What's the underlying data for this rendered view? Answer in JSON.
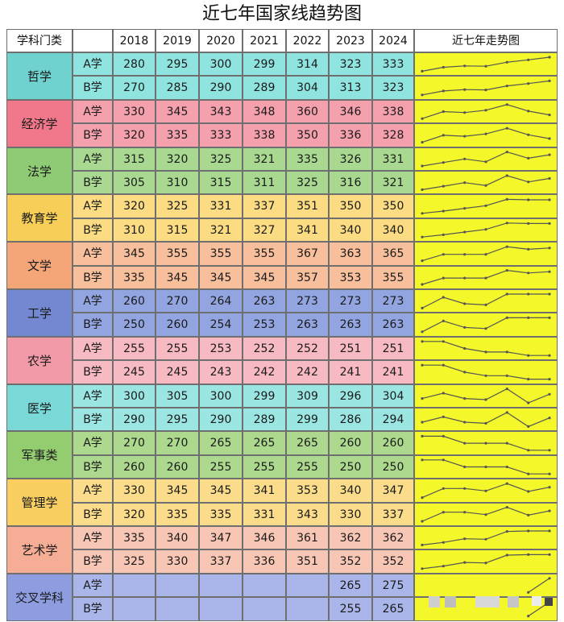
{
  "title": "近七年国家线趋势图",
  "header": {
    "subject": "学科门类",
    "years": [
      "2018",
      "2019",
      "2020",
      "2021",
      "2022",
      "2023",
      "2024"
    ],
    "trend": "近七年走势图"
  },
  "row_labels": [
    "A学",
    "B学"
  ],
  "colors": {
    "trend_bg": "#f4f72a",
    "border": "#6f6f6f",
    "groups": [
      {
        "label": "#6fd2cf",
        "data": "#8fe4e0"
      },
      {
        "label": "#f0788a",
        "data": "#f5a1ad"
      },
      {
        "label": "#8fcb74",
        "data": "#a9d991"
      },
      {
        "label": "#f7cf58",
        "data": "#fbdc82"
      },
      {
        "label": "#f4a678",
        "data": "#f7bf9c"
      },
      {
        "label": "#7388d1",
        "data": "#93a5e0"
      },
      {
        "label": "#f39aa8",
        "data": "#f7b9c2"
      },
      {
        "label": "#7ad9d6",
        "data": "#9be6e3"
      },
      {
        "label": "#93cd70",
        "data": "#add98e"
      },
      {
        "label": "#f9cf62",
        "data": "#fbdc8a"
      },
      {
        "label": "#f5ad95",
        "data": "#f8c6b4"
      },
      {
        "label": "#8e9de0",
        "data": "#aab6ea"
      }
    ]
  },
  "chart_data": {
    "type": "table",
    "title": "近七年国家线趋势图",
    "columns": [
      "2018",
      "2019",
      "2020",
      "2021",
      "2022",
      "2023",
      "2024"
    ],
    "groups": [
      {
        "subject": "哲学",
        "rows": [
          {
            "name": "A学",
            "values": [
              280,
              295,
              300,
              299,
              314,
              323,
              333
            ]
          },
          {
            "name": "B学",
            "values": [
              270,
              285,
              290,
              289,
              304,
              313,
              323
            ]
          }
        ]
      },
      {
        "subject": "经济学",
        "rows": [
          {
            "name": "A学",
            "values": [
              330,
              345,
              343,
              348,
              360,
              346,
              338
            ]
          },
          {
            "name": "B学",
            "values": [
              320,
              335,
              333,
              338,
              350,
              336,
              328
            ]
          }
        ]
      },
      {
        "subject": "法学",
        "rows": [
          {
            "name": "A学",
            "values": [
              315,
              320,
              325,
              321,
              335,
              326,
              331
            ]
          },
          {
            "name": "B学",
            "values": [
              305,
              310,
              315,
              311,
              325,
              316,
              321
            ]
          }
        ]
      },
      {
        "subject": "教育学",
        "rows": [
          {
            "name": "A学",
            "values": [
              320,
              325,
              331,
              337,
              351,
              350,
              350
            ]
          },
          {
            "name": "B学",
            "values": [
              310,
              315,
              321,
              327,
              341,
              340,
              340
            ]
          }
        ]
      },
      {
        "subject": "文学",
        "rows": [
          {
            "name": "A学",
            "values": [
              345,
              355,
              355,
              355,
              367,
              363,
              365
            ]
          },
          {
            "name": "B学",
            "values": [
              335,
              345,
              345,
              345,
              357,
              353,
              355
            ]
          }
        ]
      },
      {
        "subject": "工学",
        "rows": [
          {
            "name": "A学",
            "values": [
              260,
              270,
              264,
              263,
              273,
              273,
              273
            ]
          },
          {
            "name": "B学",
            "values": [
              250,
              260,
              254,
              253,
              263,
              263,
              263
            ]
          }
        ]
      },
      {
        "subject": "农学",
        "rows": [
          {
            "name": "A学",
            "values": [
              255,
              255,
              253,
              252,
              252,
              251,
              251
            ]
          },
          {
            "name": "B学",
            "values": [
              245,
              245,
              243,
              242,
              242,
              241,
              241
            ]
          }
        ]
      },
      {
        "subject": "医学",
        "rows": [
          {
            "name": "A学",
            "values": [
              300,
              305,
              300,
              299,
              309,
              296,
              304
            ]
          },
          {
            "name": "B学",
            "values": [
              290,
              295,
              290,
              289,
              299,
              286,
              294
            ]
          }
        ]
      },
      {
        "subject": "军事类",
        "rows": [
          {
            "name": "A学",
            "values": [
              270,
              270,
              265,
              265,
              265,
              260,
              260
            ]
          },
          {
            "name": "B学",
            "values": [
              260,
              260,
              255,
              255,
              255,
              250,
              250
            ]
          }
        ]
      },
      {
        "subject": "管理学",
        "rows": [
          {
            "name": "A学",
            "values": [
              330,
              345,
              345,
              341,
              353,
              340,
              347
            ]
          },
          {
            "name": "B学",
            "values": [
              320,
              335,
              335,
              331,
              343,
              330,
              337
            ]
          }
        ]
      },
      {
        "subject": "艺术学",
        "rows": [
          {
            "name": "A学",
            "values": [
              335,
              340,
              347,
              346,
              361,
              362,
              362
            ]
          },
          {
            "name": "B学",
            "values": [
              325,
              330,
              337,
              336,
              351,
              352,
              352
            ]
          }
        ]
      },
      {
        "subject": "交叉学科",
        "rows": [
          {
            "name": "A学",
            "values": [
              null,
              null,
              null,
              null,
              null,
              265,
              275
            ]
          },
          {
            "name": "B学",
            "values": [
              null,
              null,
              null,
              null,
              null,
              255,
              265
            ]
          }
        ]
      }
    ]
  }
}
